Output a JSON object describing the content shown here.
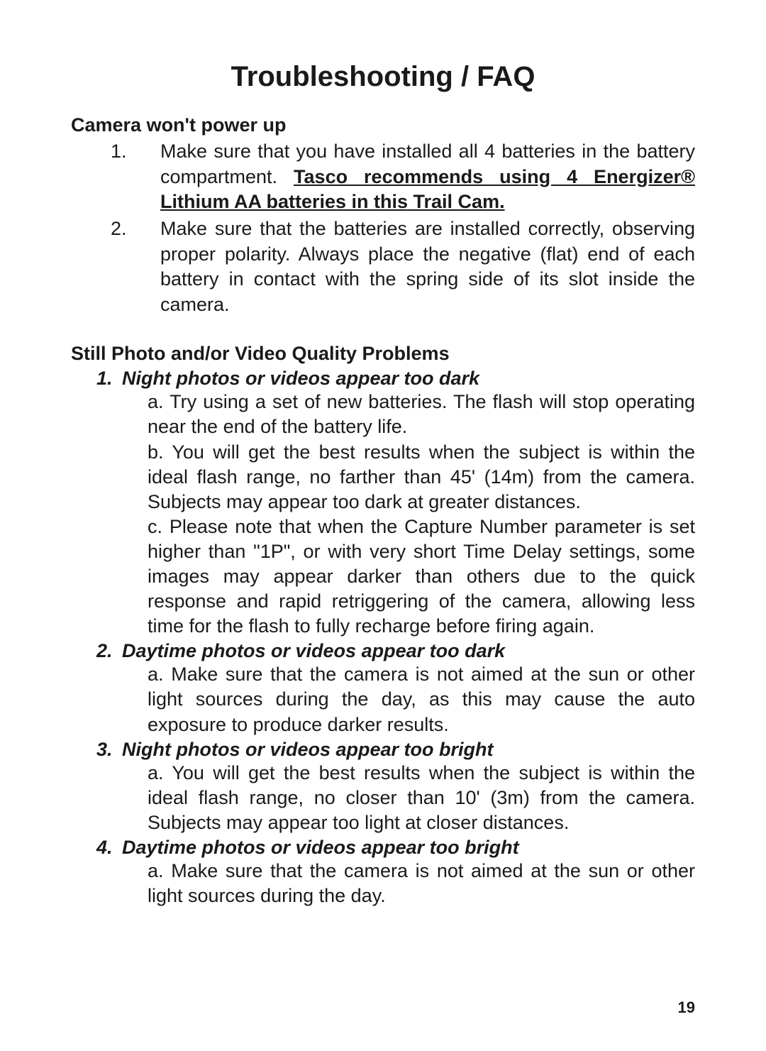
{
  "title": "Troubleshooting / FAQ",
  "page_number": "19",
  "sections": [
    {
      "heading": "Camera won't power up",
      "items": [
        {
          "num": "1.",
          "pre": "Make sure that you have installed all 4 batteries in the battery compartment. ",
          "emph": "Tasco recommends using 4 Energizer® Lithium AA batteries in this Trail Cam.",
          "post": ""
        },
        {
          "num": "2.",
          "text": "Make sure that the batteries are installed correctly, observing proper polarity. Always place the negative (flat) end of each battery in contact with the spring side of its slot inside the camera."
        }
      ]
    },
    {
      "heading": "Still Photo and/or Video Quality Problems",
      "sub": [
        {
          "num": "1.",
          "title": "Night photos or videos appear too dark",
          "letters": [
            {
              "label": "a.",
              "text": "Try using a set of new batteries. The flash will stop operating near the end of the battery life."
            },
            {
              "label": "b.",
              "text": "You will get the best results when the subject is within the ideal flash range, no farther than 45' (14m) from the camera. Subjects may appear too dark at greater distances."
            },
            {
              "label": "c.",
              "text": "Please note that when the Capture Number parameter is set higher than \"1P\", or with very short Time Delay settings, some images may appear darker than others due to the quick response and rapid retriggering of the camera, allowing less time for the flash to fully recharge before firing again."
            }
          ]
        },
        {
          "num": "2.",
          "title": "Daytime photos or videos appear too dark",
          "letters": [
            {
              "label": "a.",
              "text": "Make sure that the camera is not aimed at the sun or other light sources during the day, as this may cause the auto exposure to produce darker results."
            }
          ]
        },
        {
          "num": "3.",
          "title": "Night photos or videos appear too bright",
          "letters": [
            {
              "label": "a.",
              "text": "You will get the best results when the subject is within the ideal flash range, no closer than 10' (3m) from the camera. Subjects may appear too light at closer distances."
            }
          ]
        },
        {
          "num": "4.",
          "title": "Daytime photos or videos appear too bright",
          "letters": [
            {
              "label": "a.",
              "text": "Make sure that the camera is not aimed at the sun or other light sources during the day."
            }
          ]
        }
      ]
    }
  ],
  "colors": {
    "background": "#ffffff",
    "text": "#1a1a1a"
  },
  "typography": {
    "title_fontsize": 40,
    "body_fontsize": 27,
    "page_number_fontsize": 22,
    "font_family": "Myriad Pro, Segoe UI, Arial, sans-serif"
  }
}
